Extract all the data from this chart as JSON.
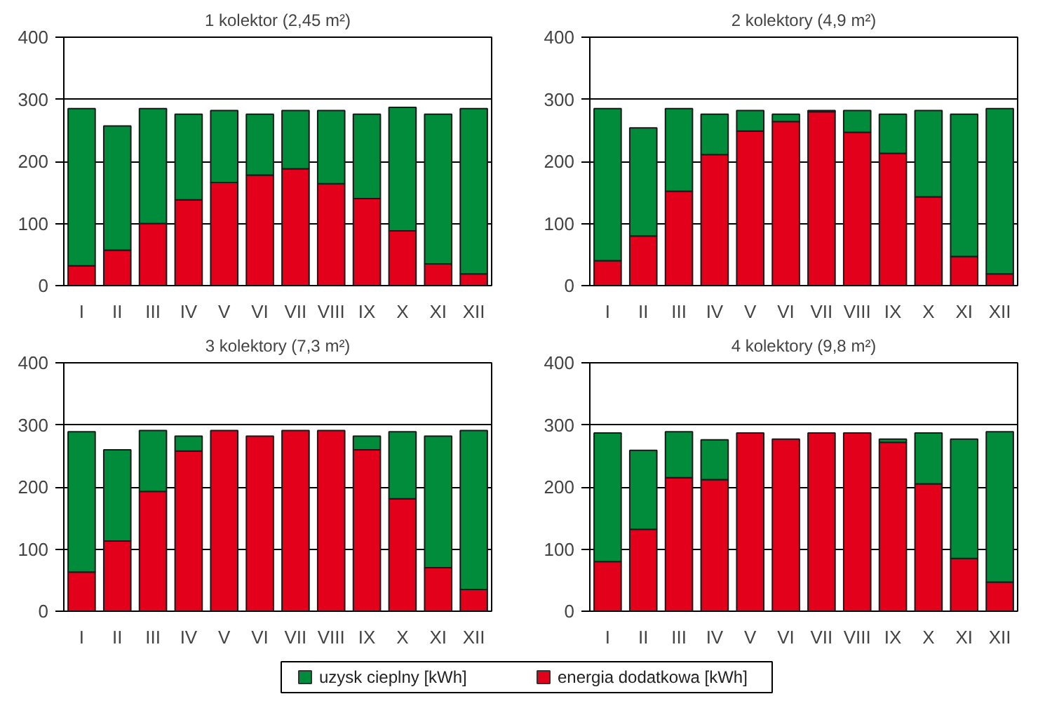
{
  "chart_data": [
    {
      "type": "bar",
      "title": "1 kolektor (2,45 m²)",
      "stacked": true,
      "categories": [
        "I",
        "II",
        "III",
        "IV",
        "V",
        "VI",
        "VII",
        "VIII",
        "IX",
        "X",
        "XI",
        "XII"
      ],
      "ylim": [
        0,
        400
      ],
      "yticks": [
        0,
        100,
        200,
        300,
        400
      ],
      "grid": "y",
      "legend": "bottom",
      "series": [
        {
          "name": "energia dodatkowa [kWh]",
          "color": "#e2001a",
          "values": [
            32,
            57,
            100,
            138,
            166,
            178,
            188,
            164,
            140,
            88,
            35,
            19
          ]
        },
        {
          "name": "uzysk cieplny [kWh]",
          "color": "#008c3a",
          "values": [
            253,
            200,
            185,
            138,
            116,
            98,
            94,
            118,
            136,
            199,
            241,
            266
          ]
        }
      ]
    },
    {
      "type": "bar",
      "title": "2 kolektory (4,9 m²)",
      "stacked": true,
      "categories": [
        "I",
        "II",
        "III",
        "IV",
        "V",
        "VI",
        "VII",
        "VIII",
        "IX",
        "X",
        "XI",
        "XII"
      ],
      "ylim": [
        0,
        400
      ],
      "yticks": [
        0,
        100,
        200,
        300,
        400
      ],
      "grid": "y",
      "series": [
        {
          "color": "#e2001a",
          "values": [
            40,
            80,
            152,
            211,
            249,
            264,
            280,
            247,
            213,
            143,
            47,
            19
          ]
        },
        {
          "color": "#008c3a",
          "values": [
            245,
            174,
            133,
            65,
            33,
            12,
            2,
            35,
            63,
            139,
            229,
            266
          ]
        }
      ]
    },
    {
      "type": "bar",
      "title": "3 kolektory (7,3 m²)",
      "stacked": true,
      "categories": [
        "I",
        "II",
        "III",
        "IV",
        "V",
        "VI",
        "VII",
        "VIII",
        "IX",
        "X",
        "XI",
        "XII"
      ],
      "ylim": [
        0,
        400
      ],
      "yticks": [
        0,
        100,
        200,
        300,
        400
      ],
      "grid": "y",
      "series": [
        {
          "color": "#e2001a",
          "values": [
            63,
            113,
            193,
            258,
            291,
            282,
            291,
            291,
            260,
            181,
            70,
            35
          ]
        },
        {
          "color": "#008c3a",
          "values": [
            226,
            147,
            98,
            24,
            0,
            0,
            0,
            0,
            22,
            108,
            212,
            256
          ]
        }
      ]
    },
    {
      "type": "bar",
      "title": "4 kolektory (9,8 m²)",
      "stacked": true,
      "categories": [
        "I",
        "II",
        "III",
        "IV",
        "V",
        "VI",
        "VII",
        "VIII",
        "IX",
        "X",
        "XI",
        "XII"
      ],
      "ylim": [
        0,
        400
      ],
      "yticks": [
        0,
        100,
        200,
        300,
        400
      ],
      "grid": "y",
      "series": [
        {
          "color": "#e2001a",
          "values": [
            80,
            132,
            215,
            212,
            287,
            277,
            287,
            287,
            272,
            205,
            85,
            47
          ]
        },
        {
          "color": "#008c3a",
          "values": [
            207,
            127,
            74,
            64,
            0,
            0,
            0,
            0,
            5,
            82,
            192,
            242
          ]
        }
      ]
    }
  ]
}
